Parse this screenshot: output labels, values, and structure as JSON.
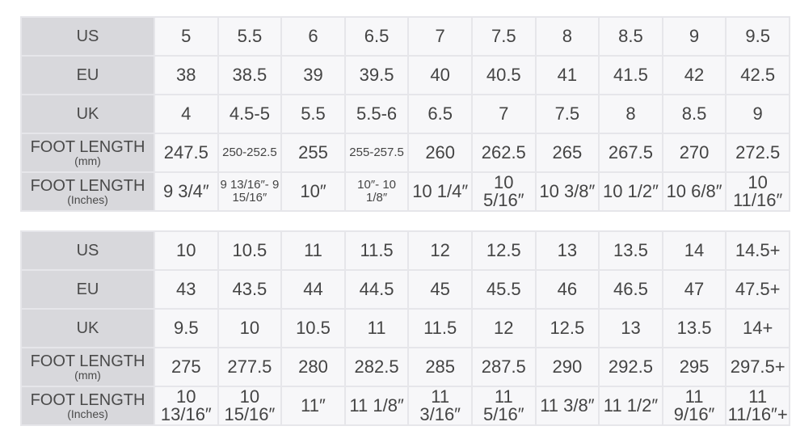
{
  "tables": [
    {
      "rows": [
        {
          "label": "US",
          "sub": "",
          "values": [
            "5",
            "5.5",
            "6",
            "6.5",
            "7",
            "7.5",
            "8",
            "8.5",
            "9",
            "9.5"
          ]
        },
        {
          "label": "EU",
          "sub": "",
          "values": [
            "38",
            "38.5",
            "39",
            "39.5",
            "40",
            "40.5",
            "41",
            "41.5",
            "42",
            "42.5"
          ]
        },
        {
          "label": "UK",
          "sub": "",
          "values": [
            "4",
            "4.5-5",
            "5.5",
            "5.5-6",
            "6.5",
            "7",
            "7.5",
            "8",
            "8.5",
            "9"
          ]
        },
        {
          "label": "FOOT LENGTH",
          "sub": "(mm)",
          "values": [
            "247.5",
            "250-252.5",
            "255",
            "255-257.5",
            "260",
            "262.5",
            "265",
            "267.5",
            "270",
            "272.5"
          ]
        },
        {
          "label": "FOOT LENGTH",
          "sub": "(Inches)",
          "values": [
            "9 3/4″",
            "9 13/16″- 9 15/16″",
            "10″",
            "10″- 10 1/8″",
            "10 1/4″",
            "10 5/16″",
            "10 3/8″",
            "10 1/2″",
            "10 6/8″",
            "10 11/16″"
          ]
        }
      ]
    },
    {
      "rows": [
        {
          "label": "US",
          "sub": "",
          "values": [
            "10",
            "10.5",
            "11",
            "11.5",
            "12",
            "12.5",
            "13",
            "13.5",
            "14",
            "14.5+"
          ]
        },
        {
          "label": "EU",
          "sub": "",
          "values": [
            "43",
            "43.5",
            "44",
            "44.5",
            "45",
            "45.5",
            "46",
            "46.5",
            "47",
            "47.5+"
          ]
        },
        {
          "label": "UK",
          "sub": "",
          "values": [
            "9.5",
            "10",
            "10.5",
            "11",
            "11.5",
            "12",
            "12.5",
            "13",
            "13.5",
            "14+"
          ]
        },
        {
          "label": "FOOT LENGTH",
          "sub": "(mm)",
          "values": [
            "275",
            "277.5",
            "280",
            "282.5",
            "285",
            "287.5",
            "290",
            "292.5",
            "295",
            "297.5+"
          ]
        },
        {
          "label": "FOOT LENGTH",
          "sub": "(Inches)",
          "values": [
            "10 13/16″",
            "10 15/16″",
            "11″",
            "11 1/8″",
            "11 3/16″",
            "11 5/16″",
            "11 3/8″",
            "11 1/2″",
            "11 9/16″",
            "11 11/16″+"
          ]
        }
      ]
    }
  ]
}
